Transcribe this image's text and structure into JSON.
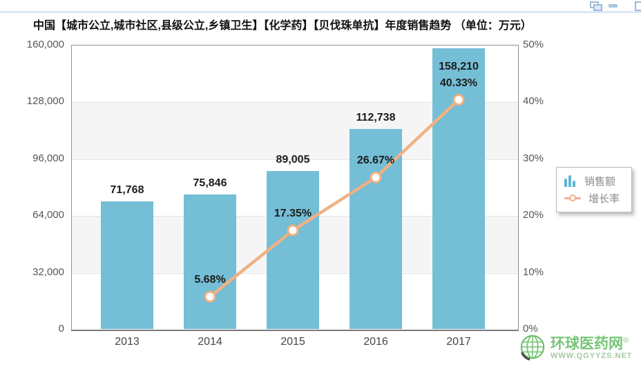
{
  "window_controls": {
    "cascade": "cascade-windows",
    "minimize": "minimize-window",
    "maximize": "maximize-window"
  },
  "title": "中国【城市公立,城市社区,县级公立,乡镇卫生】【化学药】【贝伐珠单抗】年度销售趋势 （单位：万元）",
  "chart_data": {
    "type": "bar+line combo",
    "categories": [
      "2013",
      "2014",
      "2015",
      "2016",
      "2017"
    ],
    "series": [
      {
        "name": "销售额",
        "type": "bar",
        "axis": "left",
        "color": "#74bed6",
        "values": [
          71768,
          75846,
          89005,
          112738,
          158210
        ],
        "labels": [
          "71,768",
          "75,846",
          "89,005",
          "112,738",
          "158,210"
        ]
      },
      {
        "name": "增长率",
        "type": "line",
        "axis": "right",
        "color": "#f0b183",
        "values": [
          null,
          5.68,
          17.35,
          26.67,
          40.33
        ],
        "labels": [
          null,
          "5.68%",
          "17.35%",
          "26.67%",
          "40.33%"
        ]
      }
    ],
    "left_axis": {
      "min": 0,
      "max": 160000,
      "ticks": [
        "160,000",
        "128,000",
        "96,000",
        "64,000",
        "32,000",
        "0"
      ]
    },
    "right_axis": {
      "min": 0,
      "max": 50,
      "ticks": [
        "50%",
        "40%",
        "30%",
        "20%",
        "10%",
        "0%"
      ]
    },
    "legend": {
      "position": "right",
      "items": [
        {
          "label": "销售额",
          "marker": "bar"
        },
        {
          "label": "增长率",
          "marker": "line"
        }
      ]
    },
    "grid": {
      "bands": true,
      "gridlines": true
    }
  },
  "watermark": {
    "name": "环球医药网",
    "reg": "®",
    "url": "WWW.QGYYZS.NET"
  }
}
